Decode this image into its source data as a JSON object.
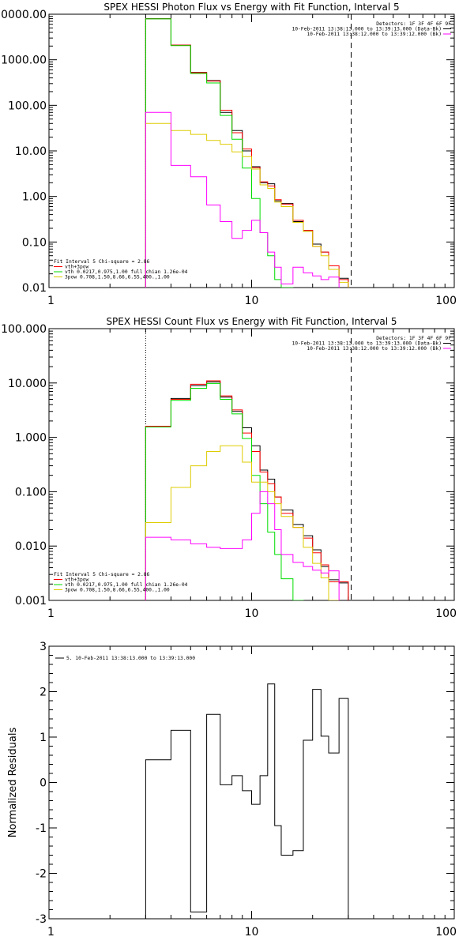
{
  "chart_data": [
    {
      "type": "line",
      "title": "SPEX HESSI Photon Flux vs Energy with Fit Function, Interval 5",
      "xlabel": "",
      "ylabel": "",
      "xscale": "log",
      "yscale": "log",
      "xlim": [
        1,
        100
      ],
      "ylim": [
        0.01,
        10000
      ],
      "x_ticks": [
        "1",
        "10",
        "100"
      ],
      "y_ticks": [
        {
          "value": 10000,
          "label": "10000.00"
        },
        {
          "value": 1000,
          "label": "1000.00"
        },
        {
          "value": 100,
          "label": "100.00"
        },
        {
          "value": 10,
          "label": "10.00"
        },
        {
          "value": 1,
          "label": "1.00"
        },
        {
          "value": 0.1,
          "label": "0.10"
        },
        {
          "value": 0.01,
          "label": "0.01"
        }
      ],
      "vlines": [
        {
          "x": 3.0,
          "style": "dotted",
          "color": "#000000"
        },
        {
          "x": 31.0,
          "style": "dashed",
          "color": "#000000"
        }
      ],
      "legend_top_right": [
        {
          "text": "Detectors: 1F 3F 4F 6F 9F",
          "color": "#000000",
          "line": false
        },
        {
          "text": "10-Feb-2011 13:38:13.000 to 13:39:13.000 (Data-Bk)",
          "color": "#000000",
          "line": true
        },
        {
          "text": "10-Feb-2011 13:38:12.000 to 13:39:12.000 (Bk)",
          "color": "#ff00ff",
          "line": true
        }
      ],
      "legend_bottom_left": [
        {
          "text": "Fit Interval 5   Chi-square = 2.86",
          "color": "#000000",
          "line": false
        },
        {
          "text": "vth+3pow",
          "color": "#ff0000",
          "line": true
        },
        {
          "text": "vth 0.0217,0.975,1.00  full chian 1.26e-04",
          "color": "#00dd00",
          "line": true
        },
        {
          "text": "3pow 0.708,1.50,8.66,6.55,400.,1.00",
          "color": "#ddcc00",
          "line": true
        }
      ],
      "edges": [
        3.0,
        4.0,
        5.0,
        6.0,
        7.0,
        8.0,
        9.0,
        10.0,
        11.0,
        12.0,
        13.0,
        14.0,
        16.0,
        18.0,
        20.0,
        22.0,
        24.0,
        27.0,
        30.0
      ],
      "series": [
        {
          "name": "Data-Bk",
          "color": "#000000",
          "values": [
            8000,
            2100,
            530,
            350,
            70,
            28,
            10,
            4.5,
            2.0,
            1.9,
            0.8,
            0.7,
            0.28,
            0.18,
            0.09,
            0.06,
            0.025,
            0.016
          ]
        },
        {
          "name": "vth+3pow",
          "color": "#ff0000",
          "values": [
            7950,
            2100,
            520,
            340,
            78,
            25,
            11,
            4.3,
            2.1,
            1.7,
            0.85,
            0.68,
            0.3,
            0.18,
            0.08,
            0.06,
            0.03,
            0.015
          ]
        },
        {
          "name": "vth",
          "color": "#00dd00",
          "values": [
            7900,
            2050,
            500,
            310,
            60,
            18,
            4.2,
            0.9,
            0.16,
            0.05,
            0.015,
            0.0085,
            0.0,
            0.0,
            0.0,
            0.0,
            0.0,
            0.0
          ]
        },
        {
          "name": "3pow",
          "color": "#ddcc00",
          "values": [
            40,
            28,
            23,
            17,
            14,
            9.5,
            7.5,
            4.0,
            1.8,
            1.5,
            0.75,
            0.6,
            0.27,
            0.17,
            0.08,
            0.05,
            0.025,
            0.013
          ]
        },
        {
          "name": "Bk",
          "color": "#ff00ff",
          "values": [
            70,
            4.8,
            2.7,
            0.65,
            0.28,
            0.12,
            0.18,
            0.3,
            0.16,
            0.06,
            0.028,
            0.012,
            0.028,
            0.021,
            0.018,
            0.015,
            0.017,
            0.0
          ]
        }
      ]
    },
    {
      "type": "line",
      "title": "SPEX HESSI Count Flux vs Energy with Fit Function, Interval 5",
      "xlabel": "",
      "ylabel": "",
      "xscale": "log",
      "yscale": "log",
      "xlim": [
        1,
        100
      ],
      "ylim": [
        0.001,
        100
      ],
      "x_ticks": [
        "1",
        "10",
        "100"
      ],
      "y_ticks": [
        {
          "value": 100,
          "label": "100.000"
        },
        {
          "value": 10,
          "label": "10.000"
        },
        {
          "value": 1,
          "label": "1.000"
        },
        {
          "value": 0.1,
          "label": "0.100"
        },
        {
          "value": 0.01,
          "label": "0.010"
        },
        {
          "value": 0.001,
          "label": "0.001"
        }
      ],
      "vlines": [
        {
          "x": 3.0,
          "style": "dotted",
          "color": "#000000"
        },
        {
          "x": 31.0,
          "style": "dashed",
          "color": "#000000"
        }
      ],
      "legend_top_right": [
        {
          "text": "Detectors: 1F 3F 4F 6F 9F",
          "color": "#000000",
          "line": false
        },
        {
          "text": "10-Feb-2011 13:38:13.000 to 13:39:13.000 (Data-Bk)",
          "color": "#000000",
          "line": true
        },
        {
          "text": "10-Feb-2011 13:38:12.000 to 13:39:12.000 (Bk)",
          "color": "#ff00ff",
          "line": true
        }
      ],
      "legend_bottom_left": [
        {
          "text": "Fit Interval 5   Chi-square = 2.86",
          "color": "#000000",
          "line": false
        },
        {
          "text": "vth+3pow",
          "color": "#ff0000",
          "line": true
        },
        {
          "text": "vth 0.0217,0.975,1.00  full chian 1.26e-04",
          "color": "#00dd00",
          "line": true
        },
        {
          "text": "3pow 0.708,1.50,8.66,6.55,400.,1.00",
          "color": "#ddcc00",
          "line": true
        }
      ],
      "edges": [
        3.0,
        4.0,
        5.0,
        6.0,
        7.0,
        8.0,
        9.0,
        10.0,
        11.0,
        12.0,
        13.0,
        14.0,
        16.0,
        18.0,
        20.0,
        22.0,
        24.0,
        27.0,
        30.0
      ],
      "series": [
        {
          "name": "Data-Bk",
          "color": "#000000",
          "values": [
            1.6,
            5.2,
            9.0,
            10.5,
            5.5,
            3.0,
            1.5,
            0.7,
            0.25,
            0.17,
            0.08,
            0.046,
            0.025,
            0.0155,
            0.0085,
            0.0042,
            0.0024,
            0.0021
          ]
        },
        {
          "name": "vth+3pow",
          "color": "#ff0000",
          "values": [
            1.6,
            5.0,
            9.5,
            11.0,
            5.8,
            3.2,
            1.2,
            0.55,
            0.23,
            0.14,
            0.08,
            0.04,
            0.022,
            0.014,
            0.0075,
            0.0045,
            0.0022,
            0.0022
          ]
        },
        {
          "name": "vth",
          "color": "#00dd00",
          "values": [
            1.55,
            4.8,
            8.0,
            9.8,
            5.0,
            2.7,
            0.95,
            0.2,
            0.06,
            0.018,
            0.007,
            0.0025,
            0.0008,
            0.0,
            0.0,
            0.0,
            0.0,
            0.0
          ]
        },
        {
          "name": "3pow",
          "color": "#ddcc00",
          "values": [
            0.027,
            0.12,
            0.3,
            0.55,
            0.7,
            0.7,
            0.35,
            0.15,
            0.15,
            0.1,
            0.06,
            0.035,
            0.022,
            0.0095,
            0.0048,
            0.0026,
            0.001,
            0.0
          ]
        },
        {
          "name": "Bk",
          "color": "#ff00ff",
          "values": [
            0.0145,
            0.013,
            0.011,
            0.0095,
            0.009,
            0.009,
            0.013,
            0.04,
            0.1,
            0.06,
            0.02,
            0.007,
            0.005,
            0.0042,
            0.0036,
            0.0032,
            0.0035,
            0.0
          ]
        }
      ]
    },
    {
      "type": "line",
      "title": "",
      "xlabel": "",
      "ylabel": "Normalized Residuals",
      "xscale": "log",
      "yscale": "linear",
      "xlim": [
        1,
        100
      ],
      "ylim": [
        -3,
        3
      ],
      "x_ticks": [
        "1",
        "10",
        "100"
      ],
      "y_ticks": [
        {
          "value": 3,
          "label": "3"
        },
        {
          "value": 2,
          "label": "2"
        },
        {
          "value": 1,
          "label": "1"
        },
        {
          "value": 0,
          "label": "0"
        },
        {
          "value": -1,
          "label": "-1"
        },
        {
          "value": -2,
          "label": "-2"
        },
        {
          "value": -3,
          "label": "-3"
        }
      ],
      "legend_top_left": [
        {
          "text": "5. 10-Feb-2011 13:38:13.000 to 13:39:13.000",
          "color": "#000000",
          "line": true
        }
      ],
      "edges": [
        3.0,
        4.0,
        5.0,
        6.0,
        7.0,
        8.0,
        9.0,
        10.0,
        11.0,
        12.0,
        13.0,
        14.0,
        16.0,
        18.0,
        20.0,
        22.0,
        24.0,
        27.0,
        30.0
      ],
      "series": [
        {
          "name": "5. 10-Feb-2011 13:38:13.000 to 13:39:13.000",
          "color": "#000000",
          "values": [
            0.5,
            1.15,
            -2.85,
            1.5,
            -0.05,
            0.15,
            -0.18,
            -0.48,
            0.15,
            2.17,
            -0.95,
            -1.6,
            -1.5,
            0.93,
            2.05,
            1.02,
            0.65,
            1.85
          ]
        }
      ]
    }
  ]
}
